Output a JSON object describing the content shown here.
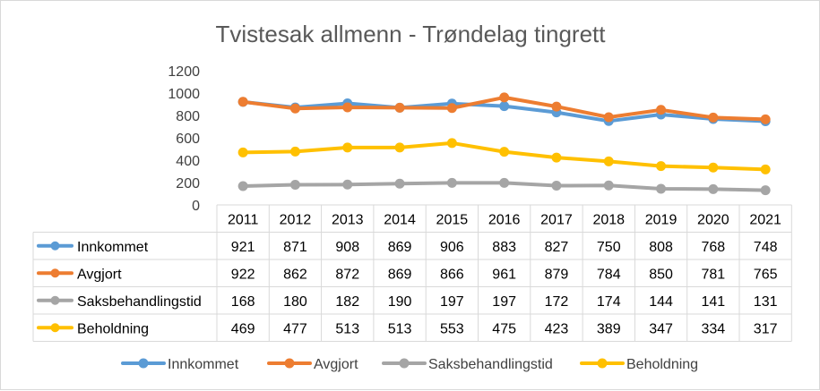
{
  "chart_data": {
    "type": "line",
    "title": "Tvistesak allmenn - Trøndelag tingrett",
    "categories": [
      "2011",
      "2012",
      "2013",
      "2014",
      "2015",
      "2016",
      "2017",
      "2018",
      "2019",
      "2020",
      "2021"
    ],
    "ylim": [
      0,
      1200
    ],
    "yticks": [
      0,
      200,
      400,
      600,
      800,
      1000,
      1200
    ],
    "grid": false,
    "data_table": true,
    "legend_position": "bottom",
    "series": [
      {
        "name": "Innkommet",
        "color": "#5B9BD5",
        "values": [
          921,
          871,
          908,
          869,
          906,
          883,
          827,
          750,
          808,
          768,
          748
        ]
      },
      {
        "name": "Avgjort",
        "color": "#ED7D31",
        "values": [
          922,
          862,
          872,
          869,
          866,
          961,
          879,
          784,
          850,
          781,
          765
        ]
      },
      {
        "name": "Saksbehandlingstid",
        "color": "#A5A5A5",
        "values": [
          168,
          180,
          182,
          190,
          197,
          197,
          172,
          174,
          144,
          141,
          131
        ]
      },
      {
        "name": "Beholdning",
        "color": "#FFC000",
        "values": [
          469,
          477,
          513,
          513,
          553,
          475,
          423,
          389,
          347,
          334,
          317
        ]
      }
    ]
  }
}
